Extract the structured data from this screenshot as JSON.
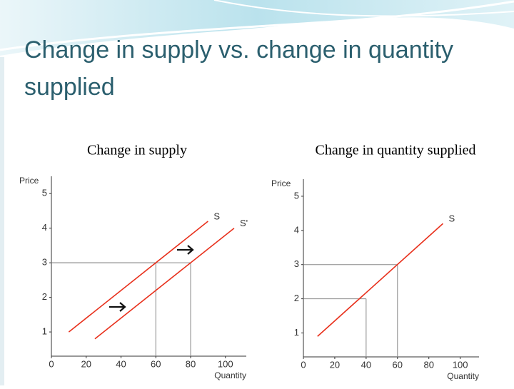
{
  "title": "Change in supply vs. change in quantity supplied",
  "chart_data": [
    {
      "type": "line",
      "subtitle": "Change in supply",
      "xlabel": "Quantity",
      "ylabel": "Price",
      "xlim": [
        0,
        112
      ],
      "ylim": [
        0.3,
        5.5
      ],
      "xticks": [
        0,
        20,
        40,
        60,
        80,
        100
      ],
      "yticks": [
        1,
        2,
        3,
        4,
        5
      ],
      "series": [
        {
          "name": "S",
          "color": "#e8301c",
          "x": [
            10,
            90
          ],
          "values": [
            1,
            4.2
          ]
        },
        {
          "name": "S'",
          "color": "#e8301c",
          "x": [
            25,
            105
          ],
          "values": [
            0.8,
            4
          ]
        }
      ],
      "guides": {
        "x": [
          60,
          80
        ],
        "y": [
          3,
          3
        ]
      }
    },
    {
      "type": "line",
      "subtitle": "Change in quantity supplied",
      "xlabel": "Quantity",
      "ylabel": "Price",
      "xlim": [
        0,
        112
      ],
      "ylim": [
        0.3,
        5.5
      ],
      "xticks": [
        0,
        20,
        40,
        60,
        80,
        100
      ],
      "yticks": [
        1,
        2,
        3,
        4,
        5
      ],
      "series": [
        {
          "name": "S",
          "color": "#e8301c",
          "x": [
            9,
            89
          ],
          "values": [
            0.9,
            4.2
          ]
        }
      ],
      "guides": {
        "x": [
          40,
          60
        ],
        "y": [
          2,
          3
        ]
      }
    }
  ]
}
